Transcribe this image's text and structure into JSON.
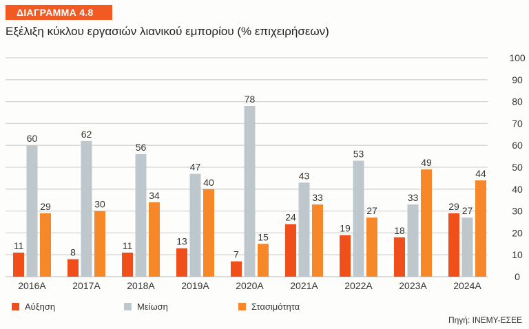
{
  "header": {
    "badge": "ΔΙΑΓΡΑΜΜΑ 4.8",
    "title": "Εξέλιξη κύκλου εργασιών λιανικού εμπορίου (% επιχειρήσεων)"
  },
  "source": "Πηγή: ΙΝΕΜΥ-ΕΣΕΕ",
  "colors": {
    "badge": "#f15a22",
    "grid": "#d4d4d4"
  },
  "chart_data": {
    "type": "bar",
    "title": "Εξέλιξη κύκλου εργασιών λιανικού εμπορίου (% επιχειρήσεων)",
    "xlabel": "",
    "ylabel": "",
    "ylim": [
      0,
      100
    ],
    "yticks": [
      "0",
      "10",
      "20",
      "30",
      "40",
      "50",
      "60",
      "70",
      "80",
      "90",
      "100"
    ],
    "grid": true,
    "y_axis_position": "right",
    "legend_position": "bottom-left",
    "categories": [
      "2016A",
      "2017A",
      "2018A",
      "2019A",
      "2020A",
      "2021A",
      "2022A",
      "2023A",
      "2024A"
    ],
    "series": [
      {
        "name": "Αύξηση",
        "color": "#f04e1a",
        "values": [
          11,
          8,
          11,
          13,
          7,
          24,
          19,
          18,
          29
        ]
      },
      {
        "name": "Μείωση",
        "color": "#bec8cc",
        "values": [
          60,
          62,
          56,
          47,
          78,
          43,
          53,
          33,
          27
        ]
      },
      {
        "name": "Στασιμότητα",
        "color": "#f7882a",
        "values": [
          29,
          30,
          34,
          40,
          15,
          33,
          27,
          49,
          44
        ]
      }
    ]
  }
}
